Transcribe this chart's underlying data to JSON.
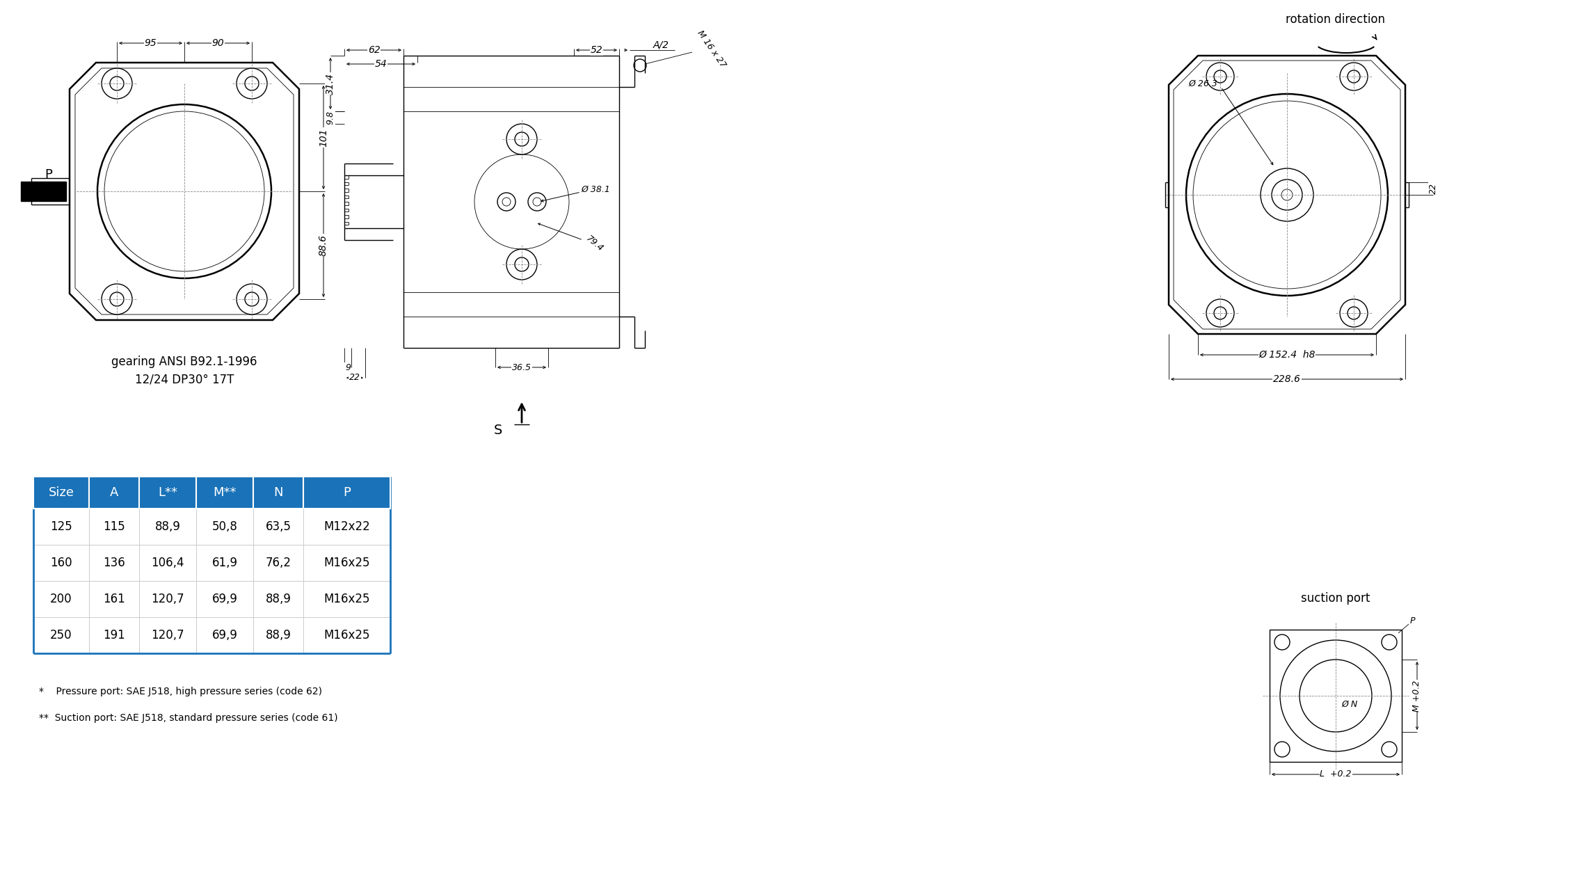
{
  "bg_color": "#ffffff",
  "lc": "#000000",
  "gray": "#888888",
  "blue_header": "#1a72b8",
  "white_text": "#ffffff",
  "table_columns": [
    "Size",
    "A",
    "L**",
    "M**",
    "N",
    "P"
  ],
  "table_rows": [
    [
      "125",
      "115",
      "88,9",
      "50,8",
      "63,5",
      "M12x22"
    ],
    [
      "160",
      "136",
      "106,4",
      "61,9",
      "76,2",
      "M16x25"
    ],
    [
      "200",
      "161",
      "120,7",
      "69,9",
      "88,9",
      "M16x25"
    ],
    [
      "250",
      "191",
      "120,7",
      "69,9",
      "88,9",
      "M16x25"
    ]
  ],
  "footnote1": "*    Pressure port: SAE J518, high pressure series (code 62)",
  "footnote2": "**  Suction port: SAE J518, standard pressure series (code 61)",
  "gearing_text1": "gearing ANSI B92.1-1996",
  "gearing_text2": "12/24 DP30° 17T",
  "rotation_text": "rotation direction",
  "suction_text": "suction port"
}
